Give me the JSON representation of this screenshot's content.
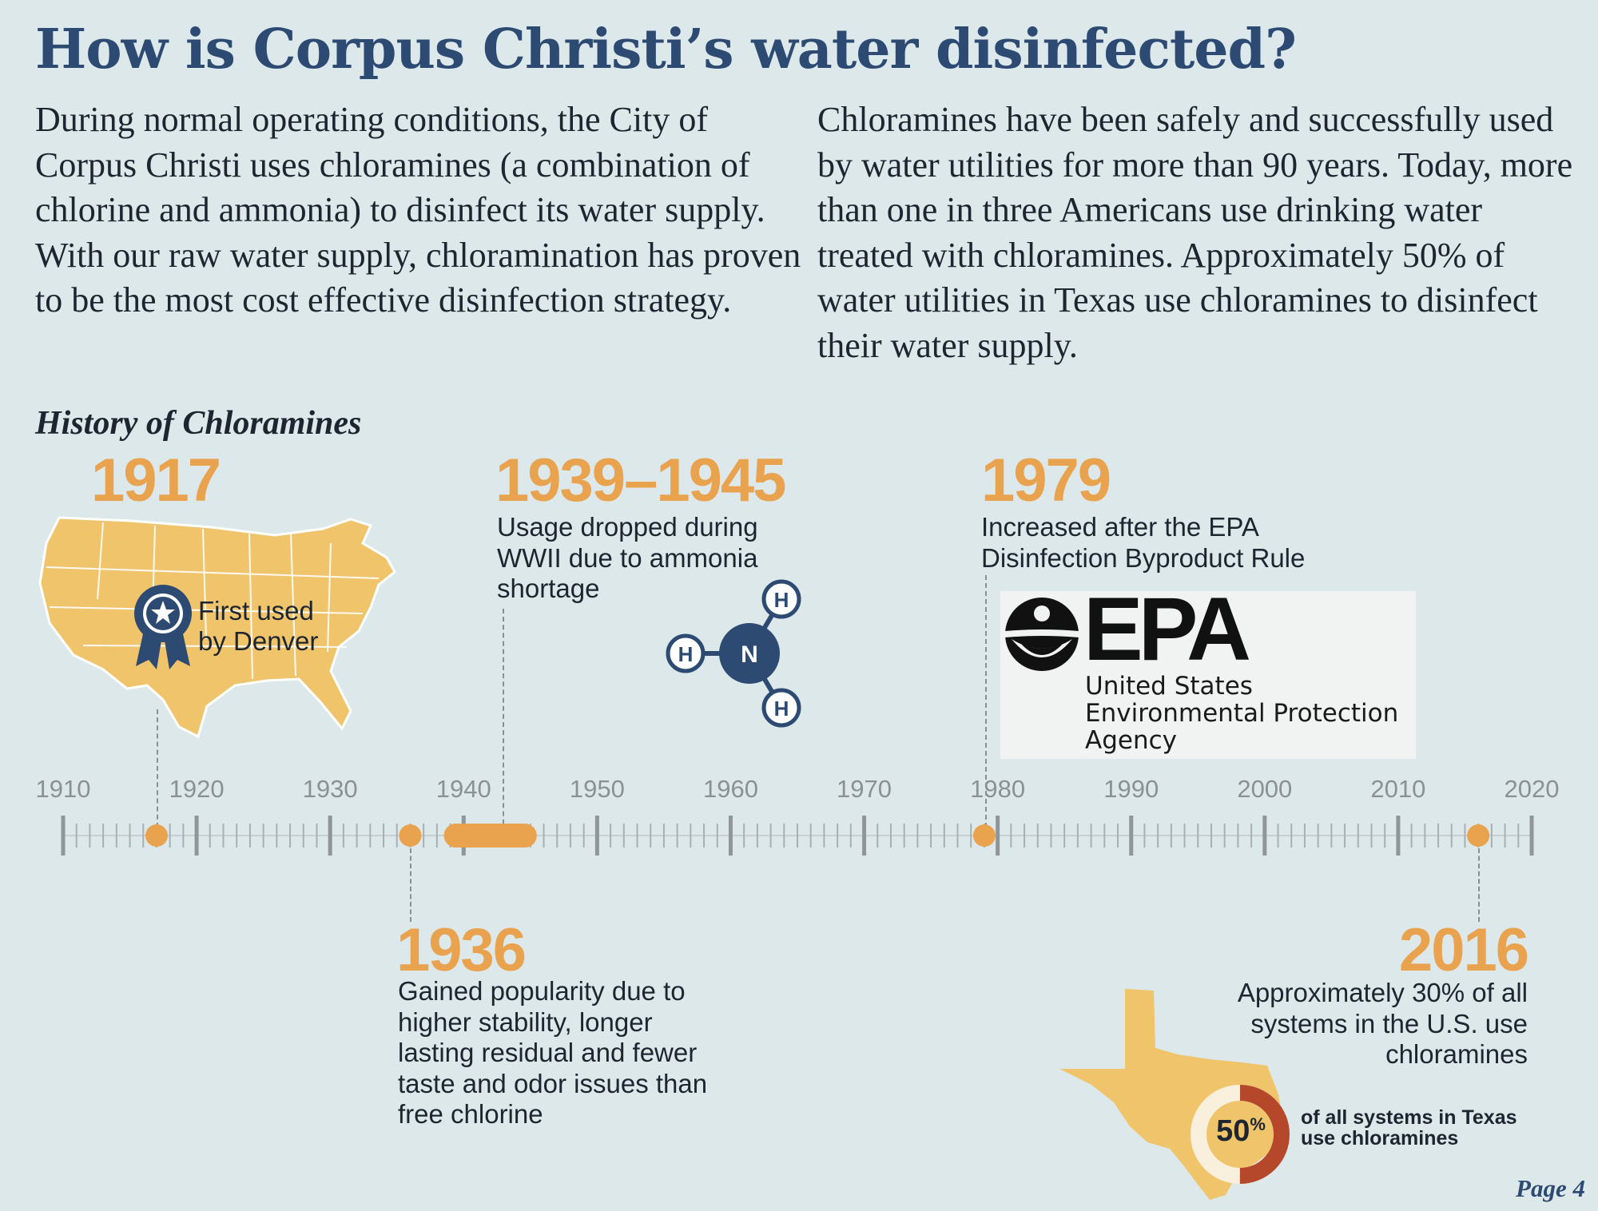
{
  "title": "How is Corpus Christi’s water disinfected?",
  "intro_left": "During normal operating conditions, the City of Corpus Christi uses chloramines (a combination of chlorine and ammonia) to disinfect its water supply. With our raw water supply, chloramination has proven to be the most cost effective disinfection strategy.",
  "intro_right": "Chloramines have been safely and successfully used by water utilities for more than 90 years. Today, more than one in three Americans use drinking water treated with chloramines. Approximately 50% of water utilities in Texas use chloramines to disinfect their water supply.",
  "history_heading": "History of Chloramines",
  "timeline": {
    "axis_labels": [
      "1910",
      "1920",
      "1930",
      "1940",
      "1950",
      "1960",
      "1970",
      "1980",
      "1990",
      "2000",
      "2010",
      "2020"
    ],
    "axis_range": [
      1910,
      2020
    ],
    "events": [
      {
        "key": "e1917",
        "year": "1917",
        "value": 1917,
        "desc": "",
        "map_label_line1": "First used",
        "map_label_line2": "by Denver"
      },
      {
        "key": "e1936",
        "year": "1936",
        "value": 1936,
        "desc": "Gained popularity due to higher stability, longer lasting residual and fewer taste and odor issues than free chlorine"
      },
      {
        "key": "e1939",
        "year": "1939–1945",
        "value_start": 1939,
        "value_end": 1945,
        "desc": "Usage dropped during WWII due to ammonia shortage"
      },
      {
        "key": "e1979",
        "year": "1979",
        "value": 1979,
        "desc": "Increased after the EPA Disinfection Byproduct Rule"
      },
      {
        "key": "e2016",
        "year": "2016",
        "value": 2016,
        "desc": "Approximately 30% of all systems in the U.S. use chloramines"
      }
    ]
  },
  "molecule": {
    "center": "N",
    "atom1": "H",
    "atom2": "H",
    "atom3": "H"
  },
  "epa_logo": {
    "wordmark": "EPA",
    "line1": "United States",
    "line2": "Environmental Protection",
    "line3": "Agency"
  },
  "texas": {
    "percent": "50",
    "percent_sign": "%",
    "fraction": 0.5,
    "caption_line1": "of all systems in Texas",
    "caption_line2": "use chloramines"
  },
  "page_number": "Page 4",
  "colors": {
    "accent": "#e9a24d",
    "navy": "#2c4a72",
    "background": "#dde8ea",
    "donut_red": "#b5482b"
  }
}
